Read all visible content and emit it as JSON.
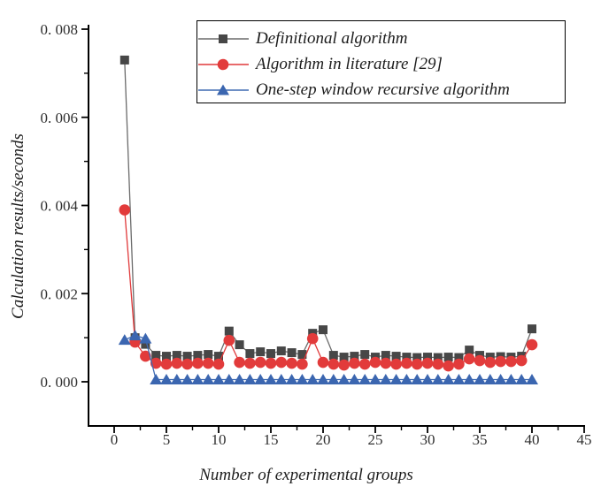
{
  "figure": {
    "background": "#ffffff"
  },
  "axes": {
    "x": {
      "label": "Number of experimental groups",
      "min": 0,
      "max": 45,
      "major_ticks": [
        0,
        5,
        10,
        15,
        20,
        25,
        30,
        35,
        40,
        45
      ],
      "tick_labels": [
        "0",
        "5",
        "10",
        "15",
        "20",
        "25",
        "30",
        "35",
        "40",
        "45"
      ],
      "minor_ticks": [
        2.5,
        7.5,
        12.5,
        17.5,
        22.5,
        27.5,
        32.5,
        37.5,
        42.5
      ]
    },
    "y": {
      "label": "Calculation results/seconds",
      "min": 0,
      "max": 0.008,
      "major_ticks": [
        0.0,
        0.002,
        0.004,
        0.006,
        0.008
      ],
      "tick_labels": [
        "0. 000",
        "0. 002",
        "0. 004",
        "0. 006",
        "0. 008"
      ],
      "minor_ticks": [
        0.001,
        0.003,
        0.005,
        0.007
      ]
    }
  },
  "legend": {
    "entries": [
      {
        "label": "Definitional algorithm",
        "marker": "square",
        "marker_color": "#474747",
        "line_color": "#6b6b6b"
      },
      {
        "label": "Algorithm in literature [29]",
        "marker": "circle",
        "marker_color": "#e23b3b",
        "line_color": "#e0393a"
      },
      {
        "label": "One-step window recursive algorithm",
        "marker": "triangle",
        "marker_color": "#3b66b0",
        "line_color": "#3f6ab2"
      }
    ]
  },
  "chart_data": {
    "type": "line",
    "title": "",
    "xlabel": "Number of experimental groups",
    "ylabel": "Calculation results/seconds",
    "xlim": [
      0,
      45
    ],
    "ylim": [
      0,
      0.008
    ],
    "grid": false,
    "legend_position": "top-inside",
    "x": [
      1,
      2,
      3,
      4,
      5,
      6,
      7,
      8,
      9,
      10,
      11,
      12,
      13,
      14,
      15,
      16,
      17,
      18,
      19,
      20,
      21,
      22,
      23,
      24,
      25,
      26,
      27,
      28,
      29,
      30,
      31,
      32,
      33,
      34,
      35,
      36,
      37,
      38,
      39,
      40
    ],
    "series": [
      {
        "name": "Definitional algorithm",
        "marker": "square",
        "marker_color": "#474747",
        "line_color": "#6b6b6b",
        "values": [
          0.0073,
          0.001,
          0.00085,
          0.0006,
          0.00058,
          0.0006,
          0.00058,
          0.0006,
          0.00062,
          0.00058,
          0.00115,
          0.00084,
          0.00064,
          0.00068,
          0.00064,
          0.0007,
          0.00066,
          0.00062,
          0.0011,
          0.00118,
          0.0006,
          0.00056,
          0.00058,
          0.00062,
          0.00056,
          0.0006,
          0.00058,
          0.00056,
          0.00055,
          0.00056,
          0.00055,
          0.00056,
          0.00055,
          0.00072,
          0.0006,
          0.00056,
          0.00057,
          0.00056,
          0.00058,
          0.0012
        ]
      },
      {
        "name": "Algorithm in literature [29]",
        "marker": "circle",
        "marker_color": "#e23b3b",
        "line_color": "#e0393a",
        "values": [
          0.0039,
          0.0009,
          0.00058,
          0.00042,
          0.0004,
          0.00042,
          0.0004,
          0.00042,
          0.00042,
          0.0004,
          0.00094,
          0.00044,
          0.00042,
          0.00044,
          0.00042,
          0.00044,
          0.00042,
          0.0004,
          0.00098,
          0.00044,
          0.0004,
          0.00038,
          0.00042,
          0.0004,
          0.00044,
          0.00042,
          0.0004,
          0.00042,
          0.0004,
          0.00042,
          0.0004,
          0.00036,
          0.0004,
          0.00052,
          0.00048,
          0.00044,
          0.00046,
          0.00046,
          0.00048,
          0.00084
        ]
      },
      {
        "name": "One-step window recursive algorithm",
        "marker": "triangle",
        "marker_color": "#3b66b0",
        "line_color": "#3f6ab2",
        "values": [
          0.00095,
          0.00105,
          0.00098,
          5e-05,
          5e-05,
          5e-05,
          5e-05,
          5e-05,
          5e-05,
          5e-05,
          5e-05,
          5e-05,
          5e-05,
          5e-05,
          5e-05,
          5e-05,
          5e-05,
          5e-05,
          5e-05,
          5e-05,
          5e-05,
          5e-05,
          5e-05,
          5e-05,
          5e-05,
          5e-05,
          5e-05,
          5e-05,
          5e-05,
          5e-05,
          5e-05,
          5e-05,
          5e-05,
          5e-05,
          5e-05,
          5e-05,
          5e-05,
          5e-05,
          5e-05,
          5e-05
        ]
      }
    ]
  }
}
